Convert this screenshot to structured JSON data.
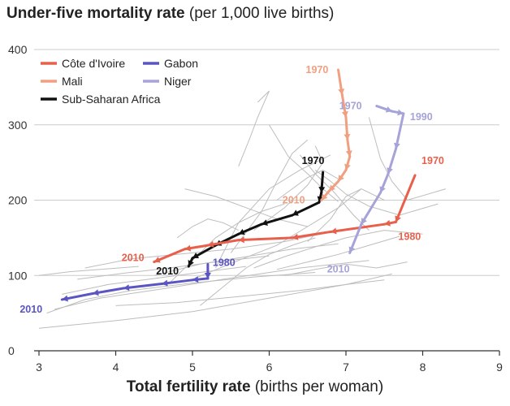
{
  "chart_data": {
    "type": "line",
    "title": "Under-five mortality rate",
    "title_unit": "(per 1,000 live births)",
    "xlabel": "Total fertility rate",
    "xlabel_unit": "(births per woman)",
    "xlim": [
      3,
      9
    ],
    "ylim": [
      0,
      400
    ],
    "x_ticks": [
      "3",
      "4",
      "5",
      "6",
      "7",
      "8",
      "9"
    ],
    "y_ticks": [
      "0",
      "100",
      "200",
      "300",
      "400"
    ],
    "grid": "horizontal",
    "legend_position": "top-left",
    "colors": {
      "cote_divoire": "#e8604c",
      "gabon": "#5a55c2",
      "mali": "#f0a080",
      "niger": "#a5a3d8",
      "ssa": "#111111",
      "background_lines": "#bdbdbd",
      "grid": "#cccccc"
    },
    "series": [
      {
        "name": "Côte d'Ivoire",
        "color_key": "cote_divoire",
        "points": [
          [
            7.9,
            233
          ],
          [
            7.65,
            171
          ],
          [
            7.5,
            168
          ],
          [
            6.8,
            158
          ],
          [
            6.3,
            150
          ],
          [
            5.6,
            147
          ],
          [
            5.2,
            140
          ],
          [
            4.9,
            135
          ],
          [
            4.5,
            118
          ]
        ],
        "labels": [
          {
            "text": "1970",
            "at": 0
          },
          {
            "text": "1980",
            "at": 1
          },
          {
            "text": "2010",
            "at": 8
          }
        ]
      },
      {
        "name": "Mali",
        "color_key": "mali",
        "points": [
          [
            6.9,
            373
          ],
          [
            6.95,
            340
          ],
          [
            7.0,
            310
          ],
          [
            7.02,
            280
          ],
          [
            7.05,
            258
          ],
          [
            7.0,
            240
          ],
          [
            6.9,
            225
          ],
          [
            6.78,
            212
          ],
          [
            6.68,
            200
          ]
        ],
        "labels": [
          {
            "text": "1970",
            "at": 0
          },
          {
            "text": "2010",
            "at": 8
          }
        ]
      },
      {
        "name": "Gabon",
        "color_key": "gabon",
        "points": [
          [
            5.2,
            115
          ],
          [
            5.2,
            96
          ],
          [
            5.0,
            94
          ],
          [
            4.6,
            89
          ],
          [
            4.1,
            83
          ],
          [
            3.7,
            76
          ],
          [
            3.3,
            68
          ]
        ],
        "labels": [
          {
            "text": "1980",
            "at": 0
          },
          {
            "text": "2010",
            "at": 6
          }
        ]
      },
      {
        "name": "Niger",
        "color_key": "niger",
        "points": [
          [
            7.4,
            325
          ],
          [
            7.6,
            318
          ],
          [
            7.75,
            315
          ],
          [
            7.65,
            268
          ],
          [
            7.55,
            235
          ],
          [
            7.45,
            210
          ],
          [
            7.2,
            168
          ],
          [
            7.05,
            130
          ]
        ],
        "labels": [
          {
            "text": "1970",
            "at": 0
          },
          {
            "text": "1990",
            "at": 2
          },
          {
            "text": "2010",
            "at": 7
          }
        ]
      },
      {
        "name": "Sub-Saharan Africa",
        "color_key": "ssa",
        "points": [
          [
            6.7,
            237
          ],
          [
            6.68,
            210
          ],
          [
            6.65,
            197
          ],
          [
            6.3,
            180
          ],
          [
            5.9,
            168
          ],
          [
            5.6,
            155
          ],
          [
            5.3,
            140
          ],
          [
            5.0,
            123
          ],
          [
            4.95,
            112
          ]
        ],
        "labels": [
          {
            "text": "1970",
            "at": 0
          },
          {
            "text": "2010",
            "at": 8
          }
        ]
      }
    ],
    "background_series": [
      [
        [
          3.0,
          30
        ],
        [
          4.0,
          40
        ],
        [
          5.0,
          52
        ],
        [
          6.0,
          70
        ],
        [
          7.0,
          88
        ],
        [
          7.6,
          102
        ]
      ],
      [
        [
          3.1,
          50
        ],
        [
          3.6,
          68
        ],
        [
          4.2,
          80
        ],
        [
          5.0,
          90
        ],
        [
          5.8,
          98
        ],
        [
          6.6,
          104
        ]
      ],
      [
        [
          3.2,
          55
        ],
        [
          3.8,
          70
        ],
        [
          4.6,
          82
        ],
        [
          5.4,
          95
        ],
        [
          6.4,
          110
        ],
        [
          7.3,
          120
        ]
      ],
      [
        [
          3.3,
          75
        ],
        [
          3.9,
          88
        ],
        [
          4.5,
          96
        ],
        [
          5.1,
          104
        ],
        [
          5.7,
          112
        ]
      ],
      [
        [
          3.6,
          110
        ],
        [
          4.2,
          122
        ],
        [
          4.8,
          128
        ],
        [
          5.5,
          135
        ],
        [
          6.2,
          145
        ],
        [
          6.9,
          160
        ]
      ],
      [
        [
          3.5,
          95
        ],
        [
          4.1,
          103
        ],
        [
          4.7,
          110
        ],
        [
          5.3,
          118
        ],
        [
          6.0,
          126
        ]
      ],
      [
        [
          4.0,
          60
        ],
        [
          4.8,
          64
        ],
        [
          5.6,
          72
        ],
        [
          6.4,
          80
        ],
        [
          7.0,
          88
        ],
        [
          7.5,
          94
        ]
      ],
      [
        [
          5.0,
          95
        ],
        [
          5.6,
          120
        ],
        [
          6.1,
          140
        ],
        [
          6.5,
          165
        ],
        [
          6.9,
          190
        ],
        [
          7.2,
          215
        ]
      ],
      [
        [
          5.3,
          110
        ],
        [
          5.6,
          170
        ],
        [
          6.0,
          215
        ],
        [
          6.4,
          240
        ],
        [
          6.8,
          260
        ]
      ],
      [
        [
          5.5,
          130
        ],
        [
          5.9,
          185
        ],
        [
          6.1,
          225
        ],
        [
          6.3,
          262
        ],
        [
          6.5,
          280
        ]
      ],
      [
        [
          5.6,
          245
        ],
        [
          5.75,
          283
        ],
        [
          5.85,
          310
        ],
        [
          6.0,
          345
        ],
        [
          5.85,
          330
        ]
      ],
      [
        [
          6.0,
          300
        ],
        [
          6.25,
          258
        ],
        [
          6.5,
          235
        ],
        [
          6.7,
          215
        ],
        [
          6.9,
          198
        ]
      ],
      [
        [
          6.4,
          260
        ],
        [
          6.6,
          235
        ],
        [
          6.85,
          210
        ],
        [
          7.1,
          180
        ],
        [
          7.3,
          160
        ]
      ],
      [
        [
          6.5,
          145
        ],
        [
          6.8,
          175
        ],
        [
          7.0,
          205
        ],
        [
          7.2,
          215
        ],
        [
          7.5,
          200
        ]
      ],
      [
        [
          7.3,
          310
        ],
        [
          7.45,
          255
        ],
        [
          7.6,
          225
        ],
        [
          7.8,
          200
        ],
        [
          8.3,
          215
        ]
      ],
      [
        [
          6.6,
          240
        ],
        [
          6.8,
          225
        ],
        [
          7.0,
          208
        ],
        [
          7.3,
          192
        ],
        [
          7.7,
          180
        ],
        [
          8.2,
          195
        ]
      ],
      [
        [
          5.8,
          110
        ],
        [
          6.2,
          125
        ],
        [
          6.6,
          138
        ],
        [
          7.0,
          150
        ],
        [
          7.5,
          160
        ],
        [
          8.0,
          155
        ]
      ],
      [
        [
          4.5,
          100
        ],
        [
          5.1,
          115
        ],
        [
          5.7,
          125
        ],
        [
          6.3,
          135
        ],
        [
          6.9,
          142
        ]
      ],
      [
        [
          4.7,
          90
        ],
        [
          5.0,
          120
        ],
        [
          5.3,
          150
        ],
        [
          5.6,
          170
        ],
        [
          5.9,
          185
        ],
        [
          6.2,
          195
        ]
      ],
      [
        [
          5.1,
          60
        ],
        [
          5.4,
          85
        ],
        [
          5.7,
          110
        ],
        [
          6.0,
          128
        ],
        [
          6.3,
          140
        ],
        [
          6.6,
          150
        ]
      ],
      [
        [
          4.9,
          215
        ],
        [
          5.3,
          205
        ],
        [
          5.7,
          190
        ],
        [
          6.1,
          175
        ],
        [
          6.5,
          165
        ]
      ],
      [
        [
          5.8,
          160
        ],
        [
          6.2,
          190
        ],
        [
          6.5,
          220
        ],
        [
          6.7,
          250
        ],
        [
          6.6,
          272
        ]
      ],
      [
        [
          7.7,
          152
        ],
        [
          7.3,
          140
        ],
        [
          6.9,
          128
        ],
        [
          6.5,
          118
        ],
        [
          6.1,
          108
        ]
      ],
      [
        [
          6.2,
          100
        ],
        [
          6.6,
          108
        ],
        [
          7.0,
          115
        ],
        [
          7.4,
          110
        ],
        [
          7.8,
          118
        ]
      ],
      [
        [
          4.8,
          150
        ],
        [
          5.0,
          165
        ],
        [
          5.2,
          175
        ],
        [
          5.4,
          170
        ],
        [
          5.6,
          160
        ]
      ],
      [
        [
          6.1,
          200
        ],
        [
          6.3,
          215
        ],
        [
          6.5,
          230
        ],
        [
          6.7,
          240
        ],
        [
          6.9,
          228
        ]
      ],
      [
        [
          3.0,
          100
        ],
        [
          3.4,
          105
        ],
        [
          3.8,
          108
        ],
        [
          4.3,
          112
        ]
      ]
    ]
  }
}
